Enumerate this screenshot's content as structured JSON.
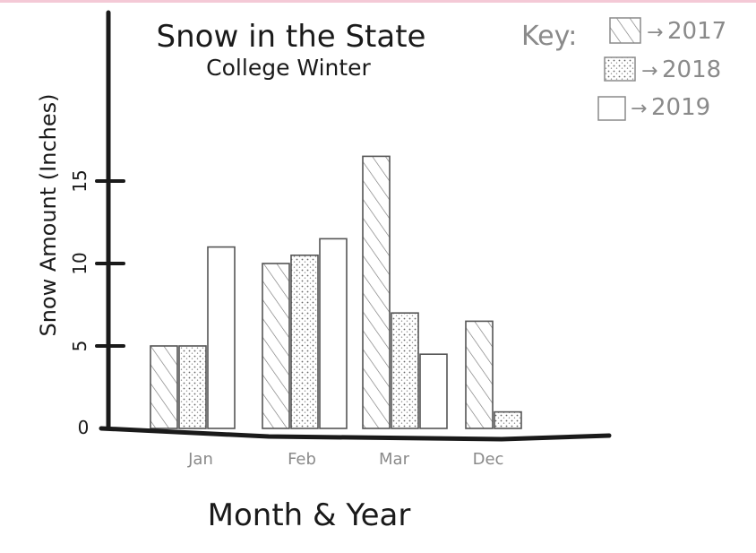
{
  "chart_data": {
    "type": "bar",
    "title": "Snow in the State",
    "subtitle": "College Winter",
    "xlabel": "Month & Year",
    "ylabel": "Snow Amount (Inches)",
    "ylim": [
      0,
      20
    ],
    "yticks": [
      0,
      5,
      10,
      15
    ],
    "categories": [
      "Jan",
      "Feb",
      "Mar",
      "Dec"
    ],
    "series": [
      {
        "name": "2017",
        "pattern": "hatch",
        "values": [
          5,
          10,
          16.5,
          6.5
        ]
      },
      {
        "name": "2018",
        "pattern": "dots",
        "values": [
          5,
          10.5,
          7,
          1
        ]
      },
      {
        "name": "2019",
        "pattern": "plain",
        "values": [
          11,
          11.5,
          4.5,
          null
        ]
      }
    ],
    "legend": {
      "title": "Key:",
      "position": "top-right"
    },
    "colors": {
      "ink": "#1a1a1a",
      "bar_stroke": "#555555",
      "pencil": "#8a8a8a"
    }
  }
}
